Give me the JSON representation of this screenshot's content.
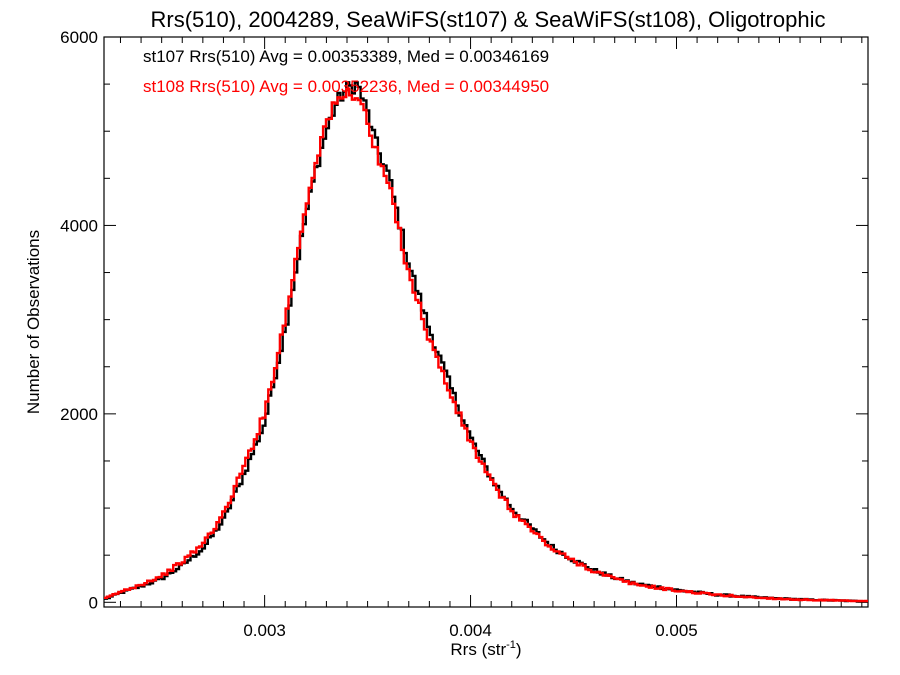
{
  "chart_data": {
    "type": "line",
    "title": "Rrs(510), 2004289, SeaWiFS(st107) & SeaWiFS(st108), Oligotrophic",
    "xlabel_main": "Rrs (str",
    "xlabel_sup": "-1",
    "xlabel_end": ")",
    "ylabel": "Number of Observations",
    "xlim": [
      0.00222,
      0.00593
    ],
    "ylim": [
      -50,
      6000
    ],
    "x_ticks": [
      0.003,
      0.004,
      0.005
    ],
    "x_tick_labels": [
      "0.003",
      "0.004",
      "0.005"
    ],
    "y_ticks": [
      0,
      2000,
      4000,
      6000
    ],
    "y_tick_labels": [
      "0",
      "2000",
      "4000",
      "6000"
    ],
    "grid": false,
    "bin_width": 1.4e-05,
    "series": [
      {
        "color": "#000000",
        "annotation": "st107 Rrs(510) Avg = 0.00353389, Med = 0.00346169",
        "x": [
          0.00222,
          0.0023,
          0.0024,
          0.0025,
          0.0026,
          0.0027,
          0.0028,
          0.0029,
          0.003,
          0.0031,
          0.0032,
          0.00325,
          0.0033,
          0.00335,
          0.0034,
          0.00345,
          0.0035,
          0.00355,
          0.0036,
          0.0037,
          0.0038,
          0.0039,
          0.004,
          0.0041,
          0.0042,
          0.0043,
          0.0044,
          0.0045,
          0.0046,
          0.0047,
          0.0048,
          0.005,
          0.0052,
          0.0054,
          0.0056,
          0.00593
        ],
        "y": [
          30,
          100,
          170,
          250,
          390,
          570,
          870,
          1360,
          1900,
          2900,
          4100,
          4600,
          5000,
          5300,
          5450,
          5500,
          5200,
          4800,
          4550,
          3600,
          2900,
          2300,
          1750,
          1320,
          1000,
          780,
          580,
          450,
          340,
          260,
          200,
          130,
          80,
          50,
          30,
          10
        ]
      },
      {
        "color": "#ff0000",
        "annotation": "st108 Rrs(510) Avg = 0.00352236, Med = 0.00344950",
        "x": [
          0.00222,
          0.0023,
          0.0024,
          0.0025,
          0.0026,
          0.0027,
          0.0028,
          0.0029,
          0.003,
          0.0031,
          0.0032,
          0.00325,
          0.0033,
          0.00335,
          0.0034,
          0.00345,
          0.0035,
          0.00355,
          0.0036,
          0.0037,
          0.0038,
          0.0039,
          0.004,
          0.0041,
          0.0042,
          0.0043,
          0.0044,
          0.0045,
          0.0046,
          0.0047,
          0.0048,
          0.005,
          0.0052,
          0.0054,
          0.0056,
          0.00593
        ],
        "y": [
          35,
          110,
          190,
          280,
          430,
          620,
          930,
          1440,
          2000,
          3000,
          4200,
          4700,
          5100,
          5300,
          5400,
          5400,
          5100,
          4700,
          4450,
          3500,
          2800,
          2220,
          1700,
          1280,
          970,
          760,
          560,
          440,
          330,
          250,
          190,
          125,
          78,
          48,
          28,
          10
        ]
      }
    ]
  }
}
